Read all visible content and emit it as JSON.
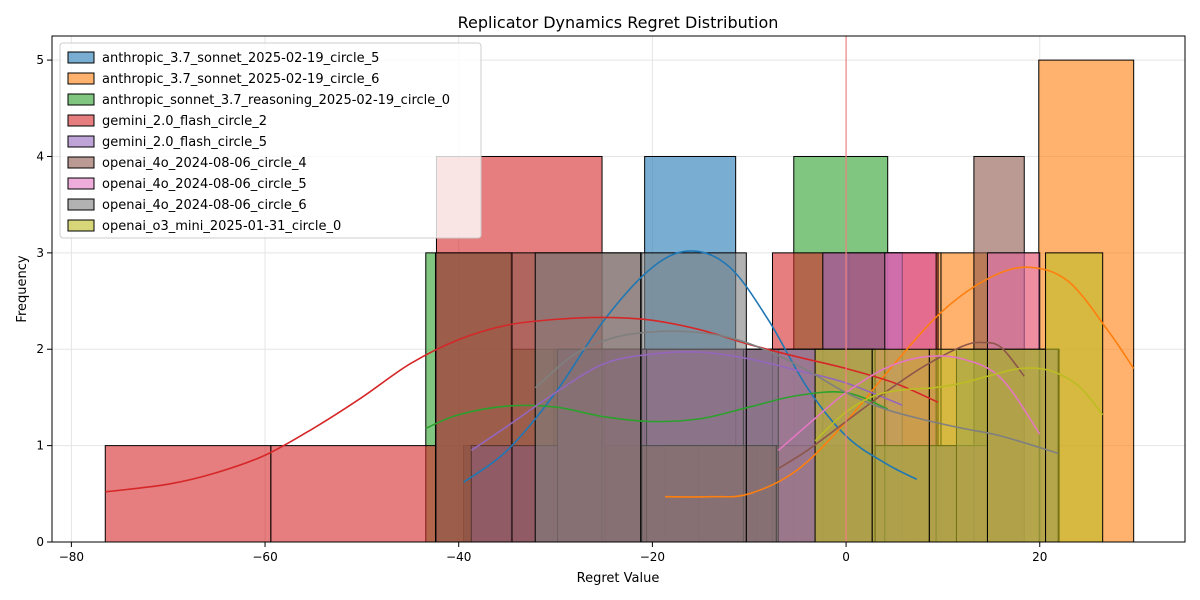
{
  "chart_data": {
    "type": "histogram",
    "title": "Replicator Dynamics Regret Distribution",
    "xlabel": "Regret Value",
    "ylabel": "Frequency",
    "xlim": [
      -82,
      35
    ],
    "ylim": [
      0,
      5.25
    ],
    "xticks": [
      -80,
      -60,
      -40,
      -20,
      0,
      20
    ],
    "yticks": [
      0,
      1,
      2,
      3,
      4,
      5
    ],
    "grid": true,
    "legend_position": "upper-left",
    "reference_line": {
      "x": 0,
      "color": "#f08080"
    },
    "series": [
      {
        "name": "anthropic_3.7_sonnet_2025-02-19_circle_5",
        "color": "#1f77b4",
        "bins": [
          [
            -39.5,
            -30.2,
            1
          ],
          [
            -30.2,
            -20.8,
            2
          ],
          [
            -20.8,
            -11.4,
            4
          ],
          [
            -11.4,
            -2.1,
            2
          ],
          [
            -2.1,
            7.3,
            1
          ]
        ],
        "kde": [
          [
            -39.5,
            0.62
          ],
          [
            -35,
            0.95
          ],
          [
            -30,
            1.55
          ],
          [
            -25,
            2.3
          ],
          [
            -20,
            2.85
          ],
          [
            -16,
            3.02
          ],
          [
            -12,
            2.85
          ],
          [
            -8,
            2.3
          ],
          [
            -4,
            1.6
          ],
          [
            0,
            1.1
          ],
          [
            4,
            0.82
          ],
          [
            7.3,
            0.65
          ]
        ]
      },
      {
        "name": "anthropic_3.7_sonnet_2025-02-19_circle_6",
        "color": "#ff7f0e",
        "bins": [
          [
            -18.7,
            -9.2,
            1
          ],
          [
            -9.2,
            0.3,
            1
          ],
          [
            0.3,
            9.8,
            3
          ],
          [
            9.8,
            19.9,
            3
          ],
          [
            19.9,
            29.7,
            5
          ]
        ],
        "kde": [
          [
            -18.7,
            0.47
          ],
          [
            -14,
            0.47
          ],
          [
            -10,
            0.5
          ],
          [
            -5,
            0.75
          ],
          [
            0,
            1.25
          ],
          [
            5,
            1.85
          ],
          [
            10,
            2.4
          ],
          [
            15,
            2.75
          ],
          [
            19,
            2.85
          ],
          [
            23,
            2.7
          ],
          [
            27,
            2.2
          ],
          [
            29.7,
            1.8
          ]
        ]
      },
      {
        "name": "anthropic_sonnet_3.7_reasoning_2025-02-19_circle_0",
        "color": "#2ca02c",
        "bins": [
          [
            -43.4,
            -34.6,
            3
          ],
          [
            -34.6,
            -24.9,
            2
          ],
          [
            -24.9,
            -15.2,
            1
          ],
          [
            -15.2,
            -5.4,
            1
          ],
          [
            -5.4,
            4.3,
            4
          ]
        ],
        "kde": [
          [
            -43.4,
            1.18
          ],
          [
            -40,
            1.32
          ],
          [
            -35,
            1.41
          ],
          [
            -30,
            1.4
          ],
          [
            -25,
            1.3
          ],
          [
            -20,
            1.25
          ],
          [
            -15,
            1.28
          ],
          [
            -10,
            1.4
          ],
          [
            -5,
            1.52
          ],
          [
            0,
            1.55
          ],
          [
            4.3,
            1.38
          ]
        ]
      },
      {
        "name": "gemini_2.0_flash_circle_2",
        "color": "#d62728",
        "bins": [
          [
            -76.5,
            -59.4,
            1
          ],
          [
            -59.4,
            -42.3,
            1
          ],
          [
            -42.3,
            -25.2,
            4
          ],
          [
            -25.2,
            -7.6,
            2
          ],
          [
            -7.6,
            9.5,
            3
          ]
        ],
        "kde": [
          [
            -76.5,
            0.52
          ],
          [
            -70,
            0.6
          ],
          [
            -65,
            0.72
          ],
          [
            -60,
            0.9
          ],
          [
            -55,
            1.18
          ],
          [
            -50,
            1.5
          ],
          [
            -45,
            1.85
          ],
          [
            -40,
            2.1
          ],
          [
            -35,
            2.25
          ],
          [
            -30,
            2.31
          ],
          [
            -25,
            2.33
          ],
          [
            -20,
            2.3
          ],
          [
            -15,
            2.2
          ],
          [
            -10,
            2.05
          ],
          [
            -5,
            1.92
          ],
          [
            0,
            1.8
          ],
          [
            5,
            1.65
          ],
          [
            9.5,
            1.45
          ]
        ]
      },
      {
        "name": "gemini_2.0_flash_circle_5",
        "color": "#9467bd",
        "bins": [
          [
            -38.7,
            -29.8,
            1
          ],
          [
            -29.8,
            -20.6,
            2
          ],
          [
            -20.6,
            -10.6,
            2
          ],
          [
            -10.6,
            -2.4,
            2
          ],
          [
            -2.4,
            5.8,
            3
          ]
        ],
        "kde": [
          [
            -38.7,
            0.95
          ],
          [
            -35,
            1.2
          ],
          [
            -30,
            1.55
          ],
          [
            -25,
            1.85
          ],
          [
            -20,
            1.95
          ],
          [
            -15,
            1.97
          ],
          [
            -10,
            1.9
          ],
          [
            -5,
            1.78
          ],
          [
            0,
            1.65
          ],
          [
            5.8,
            1.42
          ]
        ]
      },
      {
        "name": "openai_4o_2024-08-06_circle_4",
        "color": "#8c564b",
        "bins": [
          [
            -42.4,
            -34.5,
            3
          ],
          [
            -34.5,
            -21.1,
            3
          ],
          [
            -21.1,
            -7.2,
            1
          ],
          [
            -7.2,
            13.2,
            1
          ],
          [
            13.2,
            18.4,
            4
          ]
        ],
        "kde": [
          [
            -7.2,
            0.75
          ],
          [
            -4,
            0.95
          ],
          [
            0,
            1.25
          ],
          [
            4,
            1.55
          ],
          [
            8,
            1.82
          ],
          [
            12,
            2.03
          ],
          [
            14,
            2.07
          ],
          [
            16,
            2.02
          ],
          [
            18.4,
            1.72
          ]
        ]
      },
      {
        "name": "openai_4o_2024-08-06_circle_5",
        "color": "#e377c2",
        "bins": [
          [
            -7,
            4,
            2
          ],
          [
            4,
            9.3,
            3
          ],
          [
            9.3,
            14.6,
            1
          ],
          [
            14.6,
            20,
            3
          ],
          [
            20,
            22,
            2
          ]
        ],
        "kde": [
          [
            -7,
            0.95
          ],
          [
            -3,
            1.3
          ],
          [
            0,
            1.55
          ],
          [
            4,
            1.8
          ],
          [
            8,
            1.92
          ],
          [
            12,
            1.9
          ],
          [
            16,
            1.7
          ],
          [
            20,
            1.12
          ]
        ]
      },
      {
        "name": "openai_4o_2024-08-06_circle_6",
        "color": "#7f7f7f",
        "bins": [
          [
            -32.1,
            -21.2,
            3
          ],
          [
            -21.2,
            -10.3,
            3
          ],
          [
            -10.3,
            3,
            2
          ],
          [
            3,
            11.4,
            1
          ],
          [
            11.4,
            21.9,
            2
          ]
        ],
        "kde": [
          [
            -32.1,
            1.6
          ],
          [
            -28,
            1.95
          ],
          [
            -24,
            2.12
          ],
          [
            -20,
            2.18
          ],
          [
            -16,
            2.18
          ],
          [
            -12,
            2.12
          ],
          [
            -8,
            1.98
          ],
          [
            -4,
            1.78
          ],
          [
            0,
            1.55
          ],
          [
            4,
            1.38
          ],
          [
            8,
            1.27
          ],
          [
            12,
            1.18
          ],
          [
            16,
            1.1
          ],
          [
            21.9,
            0.92
          ]
        ]
      },
      {
        "name": "openai_o3_mini_2025-01-31_circle_0",
        "color": "#bcbd22",
        "bins": [
          [
            -3.2,
            2.7,
            2
          ],
          [
            2.7,
            8.6,
            2
          ],
          [
            8.6,
            14.6,
            2
          ],
          [
            14.6,
            20.6,
            2
          ],
          [
            20.6,
            26.5,
            3
          ]
        ],
        "kde": [
          [
            -3.2,
            1.05
          ],
          [
            0,
            1.35
          ],
          [
            3,
            1.52
          ],
          [
            6,
            1.58
          ],
          [
            9,
            1.6
          ],
          [
            12,
            1.65
          ],
          [
            15,
            1.73
          ],
          [
            18,
            1.8
          ],
          [
            21,
            1.78
          ],
          [
            24,
            1.62
          ],
          [
            26.5,
            1.32
          ]
        ]
      }
    ]
  }
}
